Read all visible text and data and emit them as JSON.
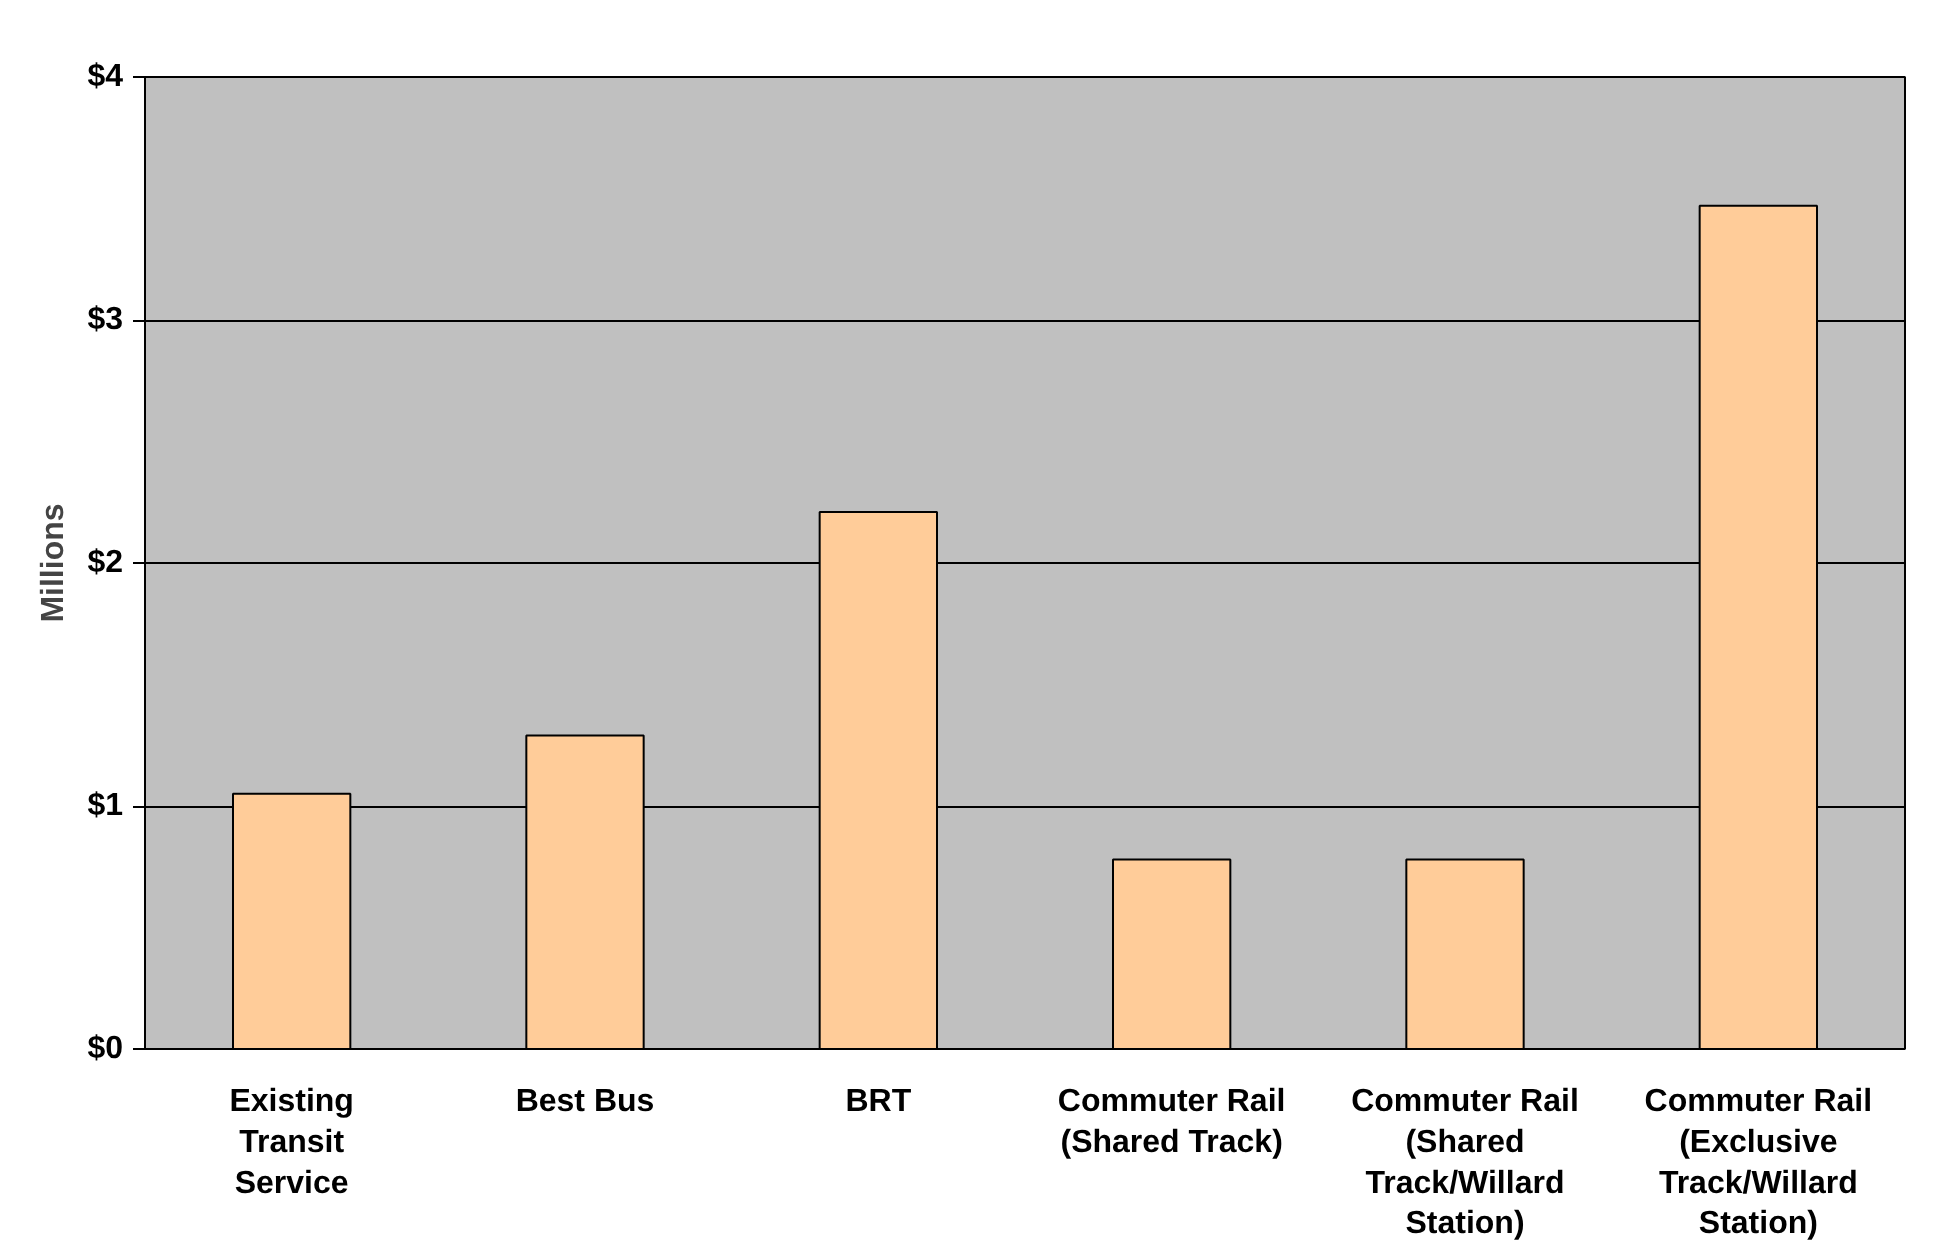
{
  "chart_data": {
    "type": "bar",
    "ylabel": "Millions",
    "categories": [
      "Existing Transit Service",
      "Best Bus",
      "BRT",
      "Commuter Rail (Shared Track)",
      "Commuter Rail (Shared Track/Willard Station)",
      "Commuter Rail (Exclusive Track/Willard Station)"
    ],
    "values": [
      1.05,
      1.29,
      2.21,
      0.78,
      0.78,
      3.47
    ],
    "color": "#ffcc99",
    "ylim": [
      0,
      4
    ],
    "yticks": [
      {
        "value": 0,
        "label": "$0"
      },
      {
        "value": 1,
        "label": "$1"
      },
      {
        "value": 2,
        "label": "$2"
      },
      {
        "value": 3,
        "label": "$3"
      },
      {
        "value": 4,
        "label": "$4"
      }
    ],
    "grid": "y"
  }
}
